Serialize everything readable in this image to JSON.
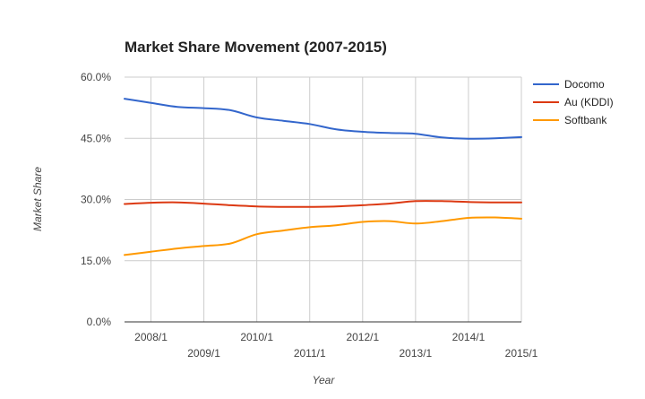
{
  "chart_data": {
    "type": "line",
    "title": "Market Share Movement (2007-2015)",
    "xlabel": "Year",
    "ylabel": "Market Share",
    "x": [
      "2007/6",
      "2008/1",
      "2008/6",
      "2009/1",
      "2009/6",
      "2010/1",
      "2010/6",
      "2011/1",
      "2011/6",
      "2012/1",
      "2012/6",
      "2013/1",
      "2013/6",
      "2014/1",
      "2014/6",
      "2015/1"
    ],
    "x_ticks": [
      "2008/1",
      "2009/1",
      "2010/1",
      "2011/1",
      "2012/1",
      "2013/1",
      "2014/1",
      "2015/1"
    ],
    "y_ticks": [
      "0.0%",
      "15.0%",
      "30.0%",
      "45.0%",
      "60.0%"
    ],
    "ylim": [
      0,
      60
    ],
    "grid": true,
    "legend_position": "right",
    "series": [
      {
        "name": "Docomo",
        "color": "#3366cc",
        "values": [
          54.7,
          53.7,
          52.7,
          52.4,
          51.9,
          50.1,
          49.3,
          48.5,
          47.2,
          46.6,
          46.3,
          46.1,
          45.2,
          44.9,
          45.0,
          45.3
        ]
      },
      {
        "name": "Au (KDDI)",
        "color": "#dc3912",
        "values": [
          28.9,
          29.2,
          29.3,
          29.0,
          28.6,
          28.3,
          28.2,
          28.2,
          28.3,
          28.6,
          29.0,
          29.6,
          29.6,
          29.4,
          29.3,
          29.3
        ]
      },
      {
        "name": "Softbank",
        "color": "#ff9900",
        "values": [
          16.4,
          17.2,
          18.0,
          18.6,
          19.2,
          21.5,
          22.4,
          23.2,
          23.7,
          24.5,
          24.7,
          24.1,
          24.7,
          25.5,
          25.6,
          25.3
        ]
      }
    ]
  }
}
